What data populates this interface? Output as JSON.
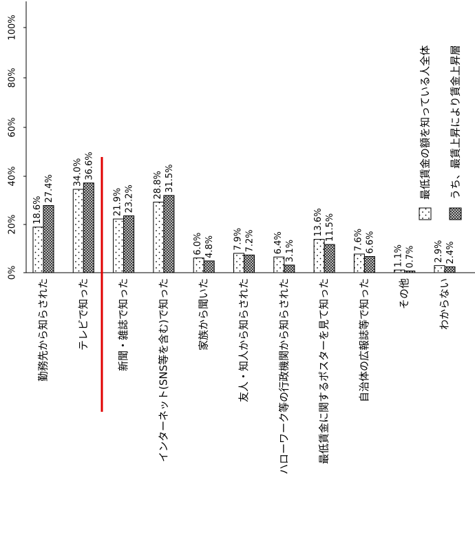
{
  "chart_data": {
    "type": "bar",
    "orientation": "rotated-90",
    "ylim": [
      0,
      100
    ],
    "y_ticks": [
      "0%",
      "20%",
      "40%",
      "60%",
      "80%",
      "100%"
    ],
    "categories": [
      "勤務先から知らされた",
      "テレビで知った",
      "新聞・雑誌で知った",
      "インターネット(SNS等を含む)で知った",
      "家族から聞いた",
      "友人・知人から知らされた",
      "ハローワーク等の行政機関から知らされた",
      "最低賃金に関するポスターを見て知った",
      "自治体の広報誌等で知った",
      "その他",
      "わからない"
    ],
    "series": [
      {
        "name": "最低賃金の額を知っている人全体",
        "values": [
          18.6,
          34.0,
          21.9,
          28.8,
          6.0,
          7.9,
          6.4,
          13.6,
          7.6,
          1.1,
          2.9
        ],
        "labels": [
          "18.6%",
          "34.0%",
          "21.9%",
          "28.8%",
          "6.0%",
          "7.9%",
          "6.4%",
          "13.6%",
          "7.6%",
          "1.1%",
          "2.9%"
        ],
        "pattern": "dotted",
        "color": "#ffffff"
      },
      {
        "name": "うち、最賃上昇により賃金上昇層",
        "values": [
          27.4,
          36.6,
          23.2,
          31.5,
          4.8,
          7.2,
          3.1,
          11.5,
          6.6,
          0.7,
          2.4
        ],
        "labels": [
          "27.4%",
          "36.6%",
          "23.2%",
          "31.5%",
          "4.8%",
          "7.2%",
          "3.1%",
          "11.5%",
          "6.6%",
          "0.7%",
          "2.4%"
        ],
        "pattern": "checkered",
        "color": "#666666"
      }
    ],
    "highlight_line_color": "#e00000",
    "grid": false,
    "legend_position": "top-right (rotated)"
  }
}
